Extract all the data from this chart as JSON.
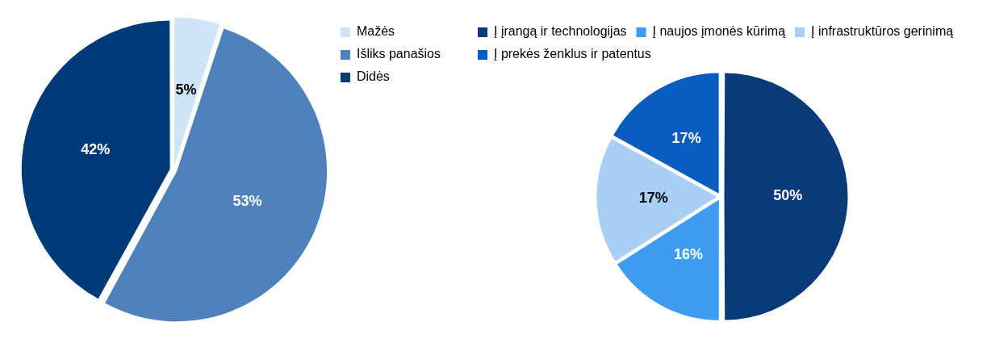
{
  "chart_data": [
    {
      "type": "pie",
      "categories": [
        "Mažės",
        "Išliks panašios",
        "Didės"
      ],
      "values": [
        5,
        53,
        42
      ],
      "colors": [
        "#cfe4f7",
        "#4f81bd",
        "#003a78"
      ],
      "value_labels": [
        "5%",
        "53%",
        "42%"
      ],
      "legend": "right"
    },
    {
      "type": "pie",
      "categories": [
        "Į įrangą ir technologijas",
        "Į naujos įmonės kūrimą",
        "Į infrastruktūros gerinimą",
        "Į prekės ženklus ir patentus"
      ],
      "values": [
        50,
        16,
        17,
        17
      ],
      "colors": [
        "#0a3a78",
        "#3d9bf0",
        "#a9cff5",
        "#0a5cbf"
      ],
      "value_labels": [
        "50%",
        "16%",
        "17%",
        "17%"
      ],
      "legend": "top"
    }
  ]
}
